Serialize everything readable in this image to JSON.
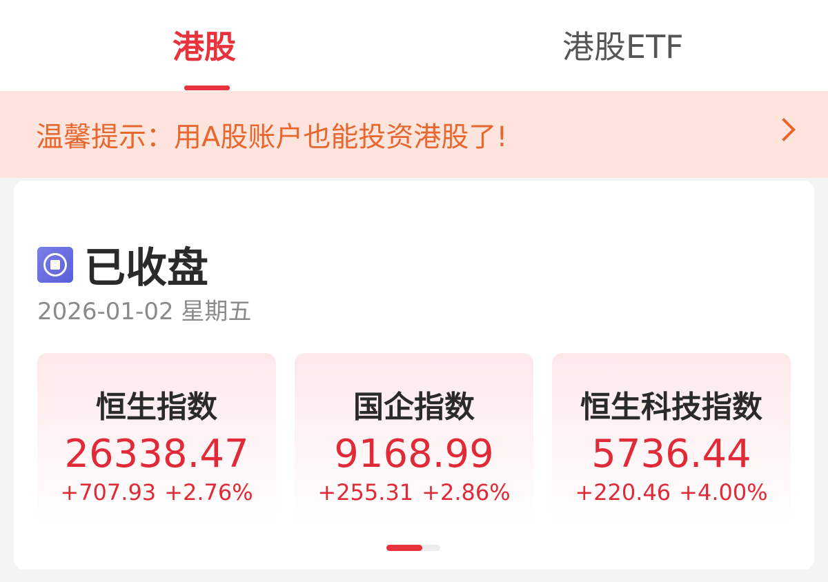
{
  "tabs": [
    {
      "label": "港股",
      "active": true
    },
    {
      "label": "港股ETF",
      "active": false
    }
  ],
  "banner": {
    "text": "温馨提示：用A股账户也能投资港股了!"
  },
  "market": {
    "status": "已收盘",
    "date": "2026-01-02 星期五"
  },
  "indices": [
    {
      "name": "恒生指数",
      "value": "26338.47",
      "change": "+707.93",
      "pct": "+2.76%"
    },
    {
      "name": "国企指数",
      "value": "9168.99",
      "change": "+255.31",
      "pct": "+2.86%"
    },
    {
      "name": "恒生科技指数",
      "value": "5736.44",
      "change": "+220.46",
      "pct": "+4.00%"
    }
  ],
  "pager": {
    "current": 1,
    "total": 2
  },
  "colors": {
    "accent": "#e8323c",
    "banner_bg": "#fde4dc",
    "banner_text": "#e8672e",
    "up": "#e02a37",
    "status_icon": "#6468e0"
  }
}
